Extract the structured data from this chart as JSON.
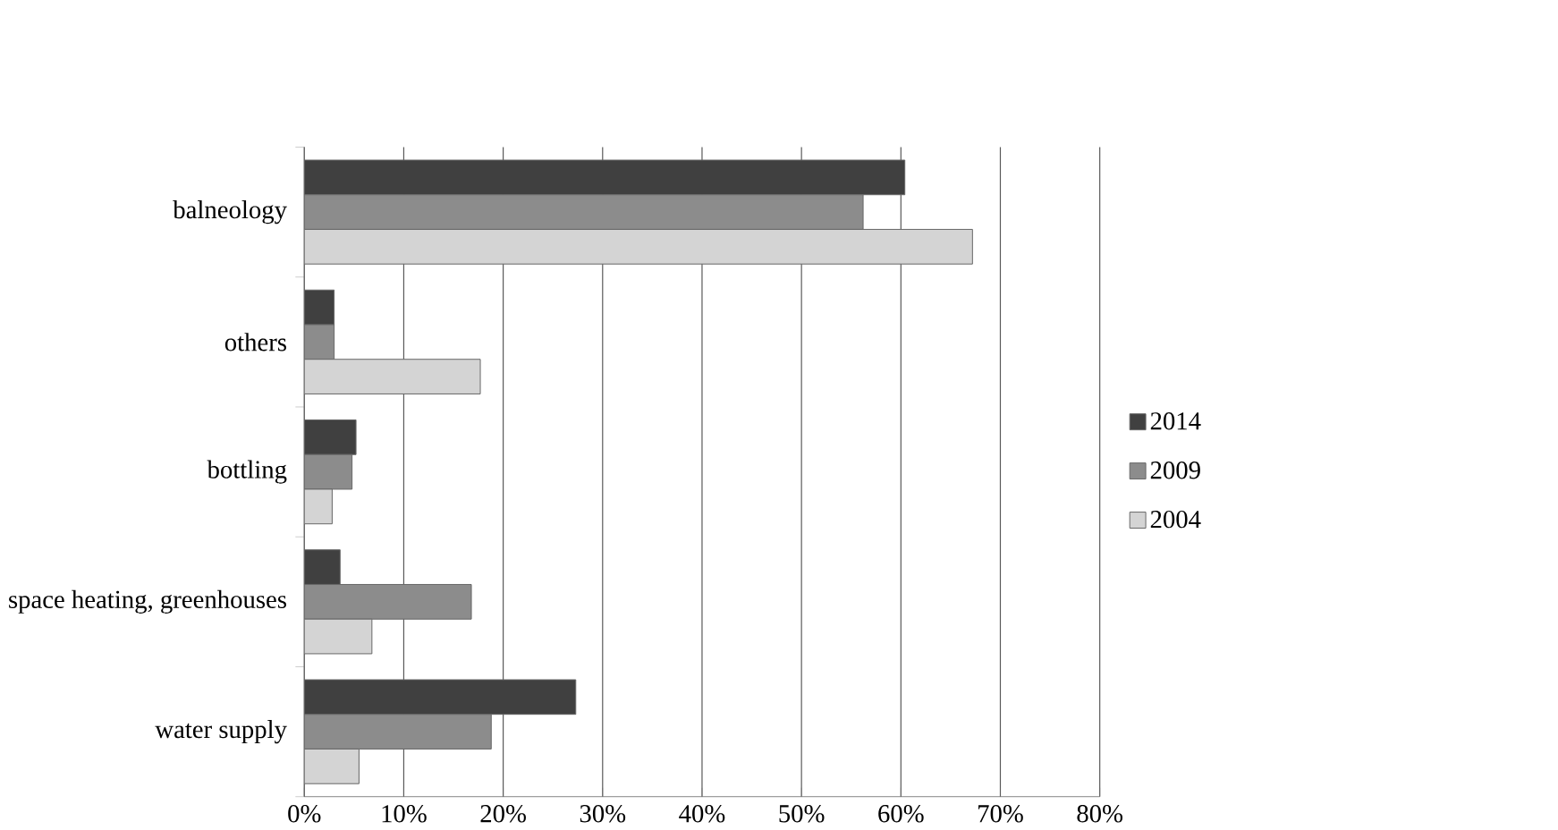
{
  "chart_data": {
    "type": "bar",
    "orientation": "horizontal",
    "categories": [
      "balneology",
      "others",
      "bottling",
      "space heating, greenhouses",
      "water supply"
    ],
    "series": [
      {
        "name": "2014",
        "color": "#404040",
        "values": [
          60.4,
          3.0,
          5.2,
          3.6,
          27.3
        ]
      },
      {
        "name": "2009",
        "color": "#8c8c8c",
        "values": [
          56.2,
          3.0,
          4.8,
          16.8,
          18.8
        ]
      },
      {
        "name": "2004",
        "color": "#d4d4d4",
        "values": [
          67.2,
          17.7,
          2.8,
          6.8,
          5.5
        ]
      }
    ],
    "xlim": [
      0,
      80
    ],
    "xticks": [
      {
        "value": 0,
        "label": "0%"
      },
      {
        "value": 10,
        "label": "10%"
      },
      {
        "value": 20,
        "label": "20%"
      },
      {
        "value": 30,
        "label": "30%"
      },
      {
        "value": 40,
        "label": "40%"
      },
      {
        "value": 50,
        "label": "50%"
      },
      {
        "value": 60,
        "label": "60%"
      },
      {
        "value": 70,
        "label": "70%"
      },
      {
        "value": 80,
        "label": "80%"
      }
    ],
    "grid": "x",
    "legend": "right"
  }
}
